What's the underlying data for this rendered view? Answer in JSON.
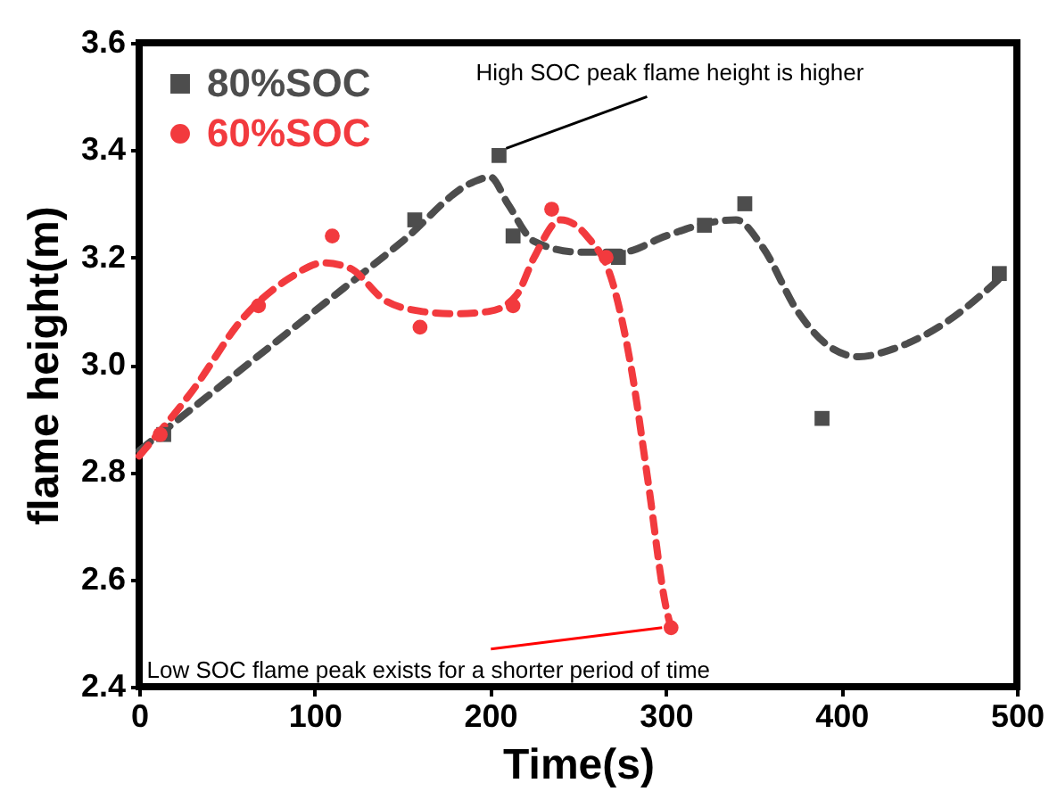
{
  "chart_data": {
    "type": "scatter",
    "xlabel": "Time(s)",
    "ylabel": "flame height(m)",
    "xlim": [
      0,
      500
    ],
    "xticks": [
      0,
      100,
      200,
      300,
      400,
      500
    ],
    "ylim": [
      2.4,
      3.6
    ],
    "yticks": [
      2.4,
      2.6,
      2.8,
      {
        "value": 3,
        "label": "3.0"
      },
      3.2,
      3.4,
      3.6
    ],
    "grid": false,
    "legend": "top left",
    "series": [
      {
        "name": "80%SOC",
        "marker": "square",
        "color": "#4d4d4d",
        "x": [
          14,
          157,
          205,
          213,
          273,
          322,
          345,
          389,
          490
        ],
        "values": [
          2.87,
          3.27,
          3.39,
          3.24,
          3.2,
          3.26,
          3.3,
          2.9,
          3.17
        ]
      },
      {
        "name": "60%SOC",
        "marker": "circle",
        "color": "#f23a3e",
        "x": [
          12,
          68,
          110,
          160,
          213,
          235,
          266,
          303
        ],
        "values": [
          2.87,
          3.11,
          3.24,
          3.07,
          3.11,
          3.29,
          3.2,
          2.51
        ]
      },
      {
        "type": "line",
        "line_style": "dashed",
        "color": "#4d4d4d",
        "x": [
          0,
          50,
          100,
          150,
          190,
          200,
          210,
          225,
          250,
          275,
          300,
          325,
          340,
          355,
          375,
          395,
          410,
          430,
          460,
          490
        ],
        "values": [
          2.84,
          2.97,
          3.1,
          3.23,
          3.34,
          3.35,
          3.3,
          3.23,
          3.21,
          3.21,
          3.24,
          3.265,
          3.27,
          3.22,
          3.1,
          3.03,
          3.015,
          3.03,
          3.08,
          3.16
        ]
      },
      {
        "type": "line",
        "line_style": "dashed",
        "color": "#f23a3e",
        "x": [
          0,
          30,
          60,
          85,
          105,
          120,
          140,
          160,
          180,
          200,
          215,
          225,
          240,
          255,
          270,
          280,
          290,
          300,
          303
        ],
        "values": [
          2.83,
          2.95,
          3.09,
          3.16,
          3.19,
          3.18,
          3.12,
          3.1,
          3.095,
          3.1,
          3.13,
          3.2,
          3.27,
          3.24,
          3.15,
          3.0,
          2.78,
          2.55,
          2.51
        ]
      }
    ],
    "annotations": [
      {
        "text": "High SOC peak flame height is higher",
        "x": 205,
        "y": 3.39
      },
      {
        "text": "Low SOC flame peak exists for a shorter period of time",
        "x": 303,
        "y": 2.51
      }
    ]
  }
}
